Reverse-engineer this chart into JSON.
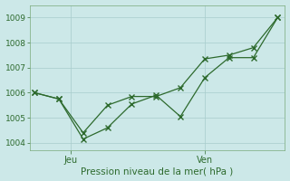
{
  "line1_x": [
    0,
    1,
    2,
    3,
    4,
    5,
    6,
    7,
    8,
    9,
    10
  ],
  "line1_y": [
    1006.0,
    1005.75,
    1004.4,
    1005.5,
    1005.85,
    1005.85,
    1006.2,
    1007.35,
    1007.5,
    1007.8,
    1009.0
  ],
  "line2_x": [
    0,
    1,
    2,
    3,
    4,
    5,
    6,
    7,
    8,
    9,
    10
  ],
  "line2_y": [
    1006.0,
    1005.75,
    1004.15,
    1004.6,
    1005.55,
    1005.9,
    1005.05,
    1006.6,
    1007.4,
    1007.4,
    1009.0
  ],
  "line_color": "#2d6a2d",
  "bg_color": "#cce8e8",
  "grid_color": "#a8cccc",
  "xlabel": "Pression niveau de la mer( hPa )",
  "xlabel_color": "#2d6a2d",
  "tick_label_color": "#2d6a2d",
  "ylim_min": 1003.7,
  "ylim_max": 1009.5,
  "yticks": [
    1004,
    1005,
    1006,
    1007,
    1008,
    1009
  ],
  "xtick_jeu_pos": 1.5,
  "xtick_ven_pos": 7.0,
  "xlim_min": -0.2,
  "xlim_max": 10.3
}
